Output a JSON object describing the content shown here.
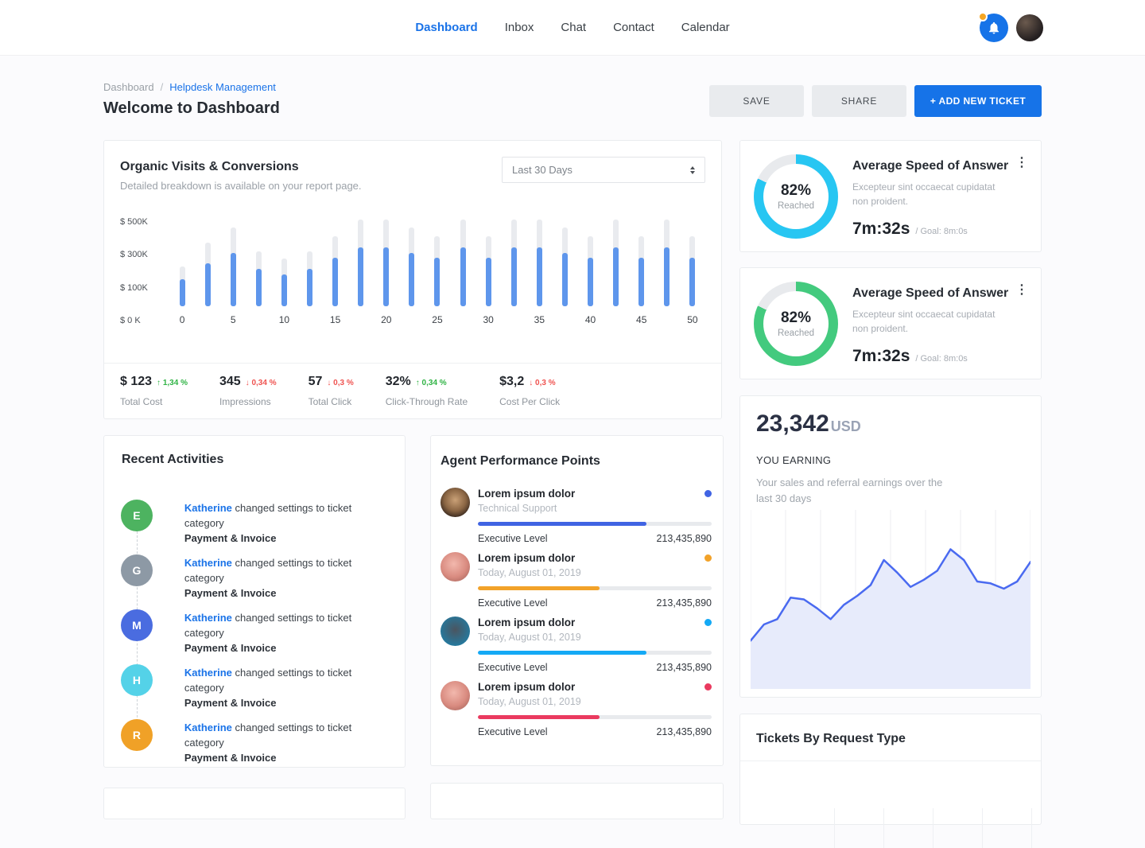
{
  "colors": {
    "accent_blue": "#1a73e8",
    "bar_blue": "#5e96ec",
    "bar_gray": "#e9ebef",
    "green_delta": "#2fb344",
    "red_delta": "#ef5350",
    "ring_cyan": "#27c6f2",
    "ring_green": "#43ca7e",
    "line_blue": "#4a6af0",
    "line_fill": "#e7ebfb"
  },
  "topbar": {
    "nav": [
      {
        "label": "Dashboard",
        "active": true
      },
      {
        "label": "Inbox",
        "active": false
      },
      {
        "label": "Chat",
        "active": false
      },
      {
        "label": "Contact",
        "active": false
      },
      {
        "label": "Calendar",
        "active": false
      }
    ],
    "notification_icon": "bell-icon"
  },
  "header": {
    "breadcrumb": {
      "parent": "Dashboard",
      "separator": "/",
      "current": "Helpdesk Management"
    },
    "title": "Welcome to Dashboard",
    "save_label": "SAVE",
    "share_label": "SHARE",
    "add_ticket_label": "+ ADD NEW TICKET"
  },
  "organic": {
    "title": "Organic Visits & Conversions",
    "subtitle": "Detailed breakdown is available on your report page.",
    "period": "Last 30 Days",
    "chart_data": {
      "type": "bar",
      "x_tick_labels": [
        "0",
        "5",
        "10",
        "15",
        "20",
        "25",
        "30",
        "35",
        "40",
        "45",
        "50"
      ],
      "y_tick_labels": [
        "$ 500K",
        "$ 300K",
        "$ 100K",
        "$ 0 K"
      ],
      "ylim": [
        0,
        520
      ],
      "unit": "K USD",
      "series": [
        {
          "name": "total",
          "values": [
            230,
            370,
            460,
            320,
            280,
            320,
            410,
            505,
            505,
            460,
            410,
            505,
            410,
            505,
            505,
            460,
            410,
            505,
            410,
            505,
            410
          ]
        },
        {
          "name": "reached",
          "values": [
            160,
            250,
            310,
            220,
            185,
            220,
            285,
            345,
            345,
            310,
            285,
            345,
            285,
            345,
            345,
            310,
            285,
            345,
            285,
            345,
            285
          ]
        }
      ]
    },
    "stats": [
      {
        "value": "$ 123",
        "delta": "1,34 %",
        "direction": "up",
        "label": "Total Cost"
      },
      {
        "value": "345",
        "delta": "0,34 %",
        "direction": "down",
        "label": "Impressions"
      },
      {
        "value": "57",
        "delta": "0,3 %",
        "direction": "down",
        "label": "Total Click"
      },
      {
        "value": "32%",
        "delta": "0,34 %",
        "direction": "up",
        "label": "Click-Through Rate"
      },
      {
        "value": "$3,2",
        "delta": "0,3 %",
        "direction": "down",
        "label": "Cost Per Click"
      }
    ]
  },
  "recent": {
    "title": "Recent Activities",
    "items": [
      {
        "initial": "E",
        "avatar_color": "#4db360",
        "user": "Katherine",
        "action": "changed settings to ticket category",
        "category": "Payment & Invoice"
      },
      {
        "initial": "G",
        "avatar_color": "#8d99a5",
        "user": "Katherine",
        "action": "changed settings to ticket category",
        "category": "Payment & Invoice"
      },
      {
        "initial": "M",
        "avatar_color": "#4a6ce0",
        "user": "Katherine",
        "action": "changed settings to ticket category",
        "category": "Payment & Invoice"
      },
      {
        "initial": "H",
        "avatar_color": "#54d2e8",
        "user": "Katherine",
        "action": "changed settings to ticket category",
        "category": "Payment & Invoice"
      },
      {
        "initial": "R",
        "avatar_color": "#f0a127",
        "user": "Katherine",
        "action": "changed settings to ticket category",
        "category": "Payment & Invoice"
      }
    ]
  },
  "agents": {
    "title": "Agent Performance Points",
    "items": [
      {
        "name": "Lorem ipsum dolor",
        "subtitle": "Technical Support",
        "color": "#4064e3",
        "progress_pct": 72,
        "level": "Executive Level",
        "points": "213,435,890"
      },
      {
        "name": "Lorem ipsum dolor",
        "subtitle": "Today, August 01, 2019",
        "color": "#f2a229",
        "progress_pct": 52,
        "level": "Executive Level",
        "points": "213,435,890"
      },
      {
        "name": "Lorem ipsum dolor",
        "subtitle": "Today, August 01, 2019",
        "color": "#14a9f5",
        "progress_pct": 72,
        "level": "Executive Level",
        "points": "213,435,890"
      },
      {
        "name": "Lorem ipsum dolor",
        "subtitle": "Today, August 01, 2019",
        "color": "#ea3a5f",
        "progress_pct": 52,
        "level": "Executive Level",
        "points": "213,435,890"
      }
    ]
  },
  "speed_cards": [
    {
      "title": "Average Speed of Answer",
      "description": "Excepteur sint occaecat cupidatat non proident.",
      "pct": 82,
      "pct_label": "82%",
      "pct_sub": "Reached",
      "value": "7m:32s",
      "goal": "/ Goal: 8m:0s",
      "ring_color": "#27c6f2"
    },
    {
      "title": "Average Speed of Answer",
      "description": "Excepteur sint occaecat cupidatat non proident.",
      "pct": 82,
      "pct_label": "82%",
      "pct_sub": "Reached",
      "value": "7m:32s",
      "goal": "/ Goal: 8m:0s",
      "ring_color": "#43ca7e"
    }
  ],
  "earning": {
    "amount": "23,342",
    "currency": "USD",
    "label": "YOU EARNING",
    "description": "Your sales and referral earnings over the last 30 days",
    "chart_data": {
      "type": "area",
      "values": [
        27,
        36,
        39,
        51,
        50,
        45,
        39,
        47,
        52,
        58,
        72,
        65,
        57,
        61,
        66,
        78,
        72,
        60,
        59,
        56,
        60,
        71
      ],
      "ylim": [
        0,
        100
      ],
      "grid": "vertical",
      "line_color": "#4a6af0",
      "fill_color": "#e7ebfb"
    }
  },
  "tickets": {
    "title": "Tickets By Request Type"
  }
}
